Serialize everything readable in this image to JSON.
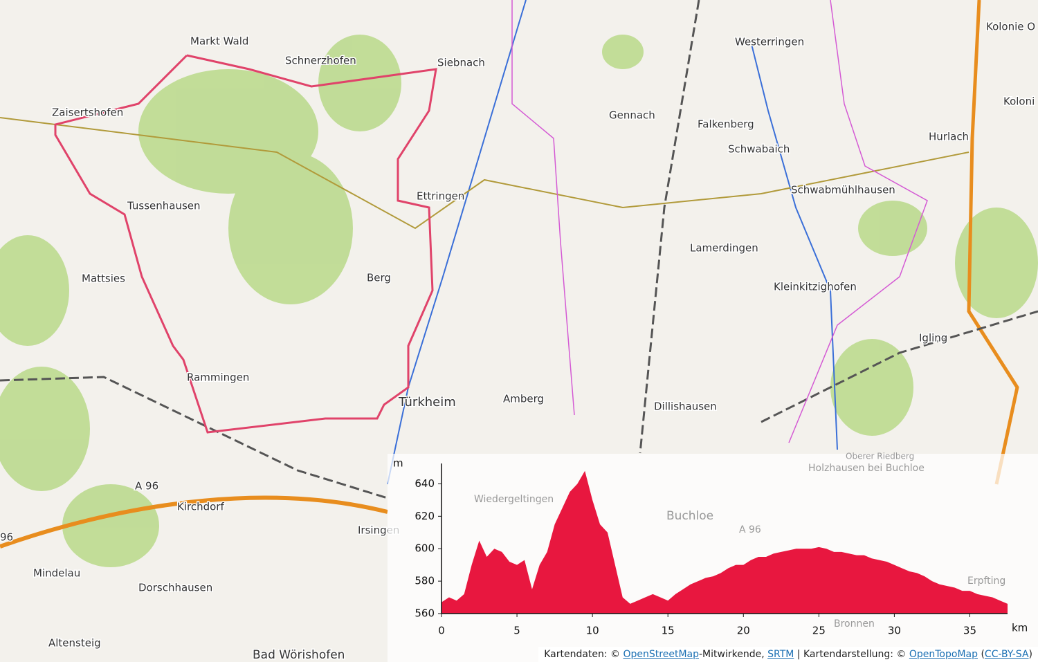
{
  "map": {
    "labels": [
      "Markt Wald",
      "Schnerzhofen",
      "Siebnach",
      "Zaisertshofen",
      "Gennach",
      "Westerringen",
      "Kolonie O",
      "Koloni",
      "Falkenberg",
      "Schwabaich",
      "Hurlach",
      "Schwabmühlhausen",
      "Tussenhausen",
      "Ettringen",
      "Lamerdingen",
      "Mattsies",
      "Berg",
      "Kleinkitzighofen",
      "Igling",
      "Rammingen",
      "Türkheim",
      "Amberg",
      "Dillishausen",
      "A 96",
      "Kirchdorf",
      "Irsingen",
      "96",
      "Mindelau",
      "Dorschhausen",
      "Altensteig",
      "Bad Wörishofen",
      "Wiedergeltingen",
      "Buchloe",
      "Holzhausen bei Buchloe",
      "Oberer Riedberg",
      "Erpfting",
      "Bronnen",
      "A 96"
    ]
  },
  "chart_data": {
    "type": "area",
    "y_label": "m",
    "x_label": "km",
    "color": "#e8173f",
    "x": [
      0,
      0.5,
      1,
      1.5,
      2,
      2.5,
      3,
      3.5,
      4,
      4.5,
      5,
      5.5,
      6,
      6.5,
      7,
      7.5,
      8,
      8.5,
      9,
      9.5,
      10,
      10.5,
      11,
      11.5,
      12,
      12.5,
      13,
      13.5,
      14,
      14.5,
      15,
      15.5,
      16,
      16.5,
      17,
      17.5,
      18,
      18.5,
      19,
      19.5,
      20,
      20.5,
      21,
      21.5,
      22,
      22.5,
      23,
      23.5,
      24,
      24.5,
      25,
      25.5,
      26,
      26.5,
      27,
      27.5,
      28,
      28.5,
      29,
      29.5,
      30,
      30.5,
      31,
      31.5,
      32,
      32.5,
      33,
      33.5,
      34,
      34.5,
      35,
      35.5,
      36,
      36.5,
      37,
      37.5
    ],
    "values": [
      567,
      570,
      568,
      572,
      590,
      605,
      595,
      600,
      598,
      592,
      590,
      593,
      575,
      590,
      598,
      615,
      625,
      635,
      640,
      648,
      630,
      615,
      610,
      590,
      570,
      566,
      568,
      570,
      572,
      570,
      568,
      572,
      575,
      578,
      580,
      582,
      583,
      585,
      588,
      590,
      590,
      593,
      595,
      595,
      597,
      598,
      599,
      600,
      600,
      600,
      601,
      600,
      598,
      598,
      597,
      596,
      596,
      594,
      593,
      592,
      590,
      588,
      586,
      585,
      583,
      580,
      578,
      577,
      576,
      574,
      574,
      572,
      571,
      570,
      568,
      566
    ],
    "xlim": [
      0,
      37.5
    ],
    "ylim": [
      560,
      650
    ],
    "xticks": [
      0,
      5,
      10,
      15,
      20,
      25,
      30,
      35
    ],
    "yticks": [
      560,
      580,
      600,
      620,
      640
    ]
  },
  "attribution": [
    "Kartendaten: © ",
    "OpenStreetMap",
    "-Mitwirkende, ",
    "SRTM",
    " | Kartendarstellung: © ",
    "OpenTopoMap",
    " (",
    "CC-BY-SA",
    ")"
  ]
}
